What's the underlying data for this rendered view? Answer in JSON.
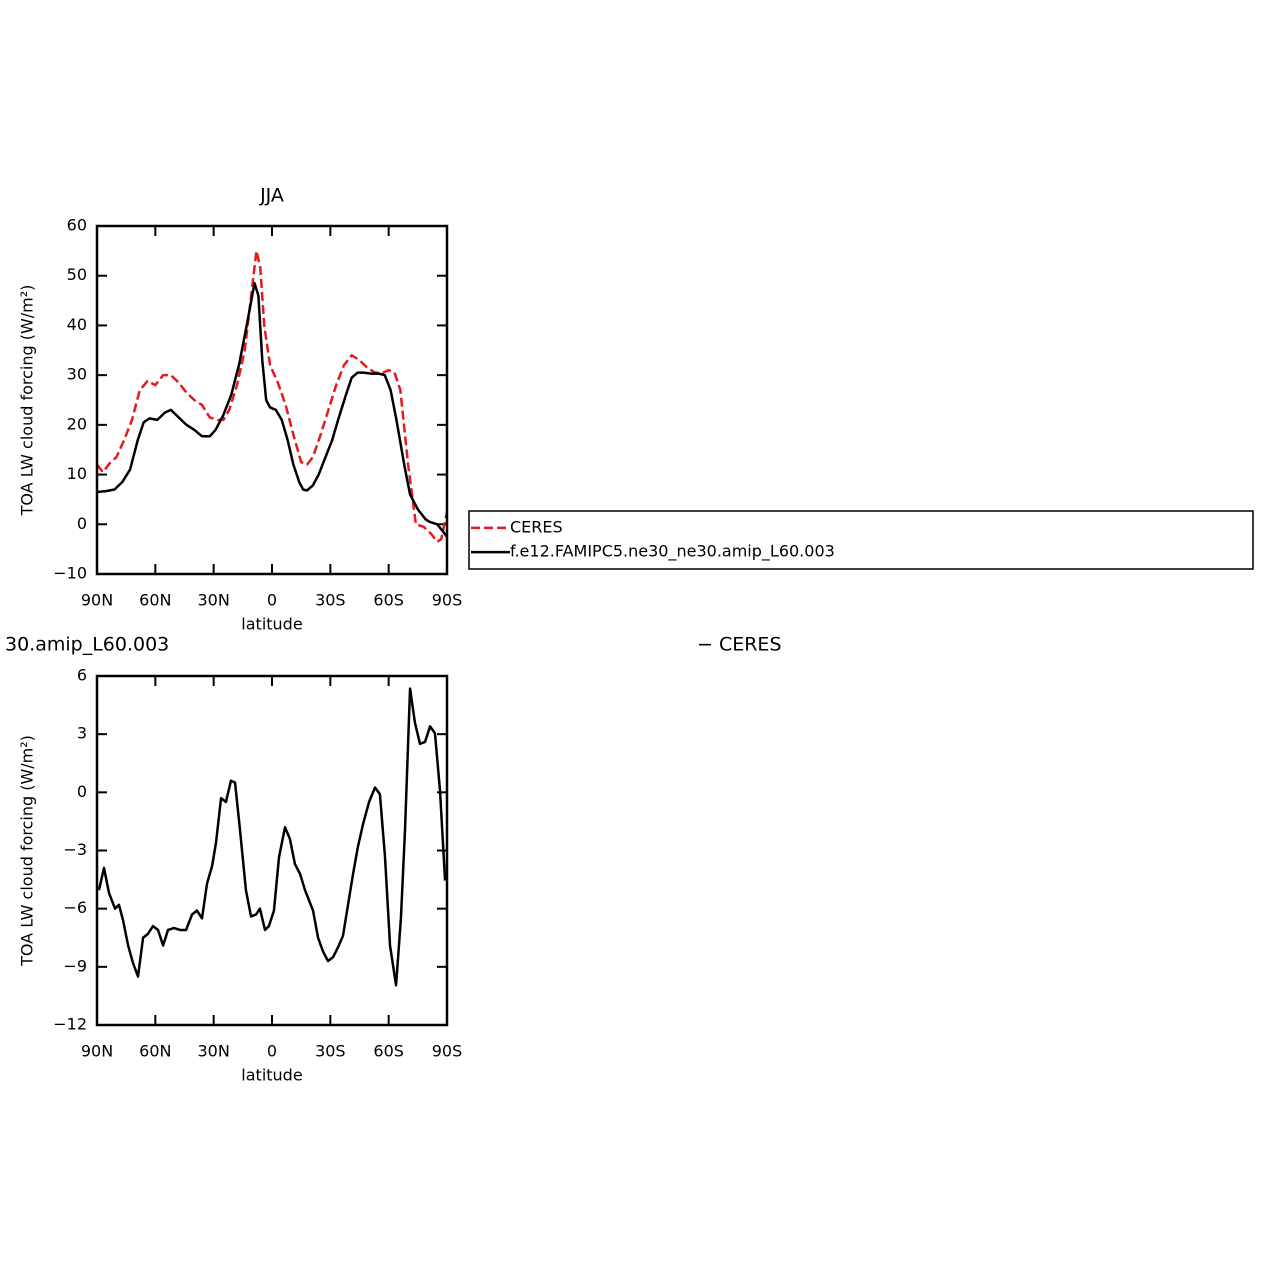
{
  "chart_data": [
    {
      "type": "line",
      "title": "JJA",
      "ylabel": "TOA LW cloud forcing (W/m²)",
      "xlabel": "latitude",
      "xlim": [
        90,
        -90
      ],
      "ylim": [
        -10,
        60
      ],
      "xticks": [
        {
          "value": 90,
          "label": "90N"
        },
        {
          "value": 60,
          "label": "60N"
        },
        {
          "value": 30,
          "label": "30N"
        },
        0,
        {
          "value": -30,
          "label": "30S"
        },
        {
          "value": -60,
          "label": "60S"
        },
        {
          "value": -90,
          "label": "90S"
        }
      ],
      "yticks": [
        {
          "value": -10,
          "label": "−10"
        },
        0,
        10,
        20,
        30,
        40,
        50,
        60
      ],
      "legend": "right",
      "series": [
        {
          "name": "CERES",
          "color": "#e41a1c",
          "style": "dashed",
          "x": [
            90,
            87,
            83,
            80,
            76,
            72,
            68,
            64,
            60,
            56,
            52,
            48,
            44,
            40,
            36,
            32,
            28,
            25,
            22,
            18,
            14,
            11,
            8,
            6,
            4,
            1,
            -3,
            -7,
            -11,
            -15,
            -18,
            -21,
            -25,
            -29,
            -33,
            -37,
            -41,
            -45,
            -49,
            -53,
            -57,
            -60,
            -63,
            -66,
            -70,
            -74,
            -78,
            -82,
            -85,
            -87,
            -90
          ],
          "values": [
            12,
            10.5,
            12.5,
            13.5,
            17,
            21,
            27,
            28.8,
            28,
            30,
            30,
            28.5,
            26.5,
            25,
            24,
            21.5,
            21,
            21,
            23,
            28,
            35,
            45,
            55,
            51.5,
            40,
            32,
            28.5,
            24,
            18,
            12.5,
            12,
            13.5,
            18,
            23,
            28,
            32,
            34,
            33,
            31.5,
            30.5,
            30.5,
            31,
            30.5,
            27,
            12,
            0,
            -0.5,
            -2,
            -3.5,
            -3,
            2.5
          ]
        },
        {
          "name": "f.e12.FAMIPC5.ne30_ne30.amip_L60.003",
          "color": "#000000",
          "style": "solid",
          "x": [
            90,
            85,
            81,
            77,
            73,
            69,
            66,
            63,
            59,
            55,
            52,
            48,
            44,
            40,
            36,
            32,
            29,
            25,
            21,
            17,
            13,
            9,
            7,
            5,
            3,
            1,
            -2,
            -5,
            -8,
            -11,
            -14,
            -16,
            -18,
            -21,
            -24,
            -27,
            -31,
            -34,
            -38,
            -41,
            -44,
            -47,
            -51,
            -55,
            -58,
            -61,
            -64,
            -68,
            -71,
            -75,
            -79,
            -81,
            -85,
            -90
          ],
          "values": [
            6.5,
            6.7,
            7,
            8.5,
            11,
            17,
            20.5,
            21.3,
            21,
            22.5,
            23,
            21.5,
            20,
            19,
            17.7,
            17.7,
            19,
            22,
            26,
            32,
            40,
            48.5,
            46,
            33,
            25,
            23.5,
            23,
            21,
            17,
            12,
            8.5,
            7,
            6.8,
            7.8,
            10,
            13,
            17,
            21,
            26,
            29.5,
            30.5,
            30.5,
            30.3,
            30.3,
            30,
            27,
            21,
            12,
            6,
            3,
            1,
            0.5,
            0,
            -2.5
          ]
        }
      ]
    },
    {
      "type": "line",
      "title_left": "30.amip_L60.003",
      "title_right": "− CERES",
      "ylabel": "TOA LW cloud forcing (W/m²)",
      "xlabel": "latitude",
      "xlim": [
        90,
        -90
      ],
      "ylim": [
        -12,
        6
      ],
      "xticks": [
        {
          "value": 90,
          "label": "90N"
        },
        {
          "value": 60,
          "label": "60N"
        },
        {
          "value": 30,
          "label": "30N"
        },
        0,
        {
          "value": -30,
          "label": "30S"
        },
        {
          "value": -60,
          "label": "60S"
        },
        {
          "value": -90,
          "label": "90S"
        }
      ],
      "yticks": [
        {
          "value": -12,
          "label": "−12"
        },
        {
          "value": -9,
          "label": "−9"
        },
        {
          "value": -6,
          "label": "−6"
        },
        {
          "value": -3,
          "label": "−3"
        },
        0,
        3,
        6
      ],
      "color": "#000000",
      "x": [
        89,
        86.4,
        83.8,
        80.7,
        78.7,
        76.6,
        74,
        71.5,
        68.9,
        66.3,
        63.8,
        61.2,
        58.6,
        56,
        53.5,
        50.4,
        47.3,
        44.2,
        41.1,
        38.6,
        36,
        33.4,
        30.8,
        28.8,
        26.2,
        23.7,
        21.1,
        19,
        16.5,
        13.4,
        10.8,
        8.2,
        6.2,
        3.6,
        1.6,
        -1,
        -3.6,
        -6.7,
        -9.2,
        -11.8,
        -14.4,
        -17,
        -21.1,
        -23.7,
        -26.2,
        -28.8,
        -31.4,
        -33.9,
        -36.5,
        -39.1,
        -41.7,
        -44.2,
        -46.8,
        -49.9,
        -53,
        -55.5,
        -58.1,
        -60.7,
        -63.8,
        -66.3,
        -68.4,
        -71,
        -73.5,
        -76.1,
        -78.7,
        -81.3,
        -83.8,
        -86.4,
        -89
      ],
      "values": [
        -5.05,
        -3.9,
        -5.2,
        -6,
        -5.8,
        -6.6,
        -7.9,
        -8.8,
        -9.5,
        -7.5,
        -7.3,
        -6.9,
        -7.1,
        -7.9,
        -7.1,
        -7,
        -7.1,
        -7.1,
        -6.3,
        -6.1,
        -6.5,
        -4.7,
        -3.8,
        -2.6,
        -0.3,
        -0.5,
        0.6,
        0.5,
        -1.9,
        -5.05,
        -6.4,
        -6.3,
        -6,
        -7.1,
        -6.9,
        -6.1,
        -3.35,
        -1.8,
        -2.4,
        -3.7,
        -4.2,
        -5.05,
        -6.1,
        -7.5,
        -8.2,
        -8.7,
        -8.5,
        -8,
        -7.4,
        -5.8,
        -4.2,
        -2.8,
        -1.65,
        -0.5,
        0.25,
        -0.1,
        -3.3,
        -7.9,
        -9.95,
        -6.5,
        -1.95,
        5.35,
        3.6,
        2.5,
        2.6,
        3.4,
        3.05,
        0.1,
        -4.55
      ]
    }
  ]
}
